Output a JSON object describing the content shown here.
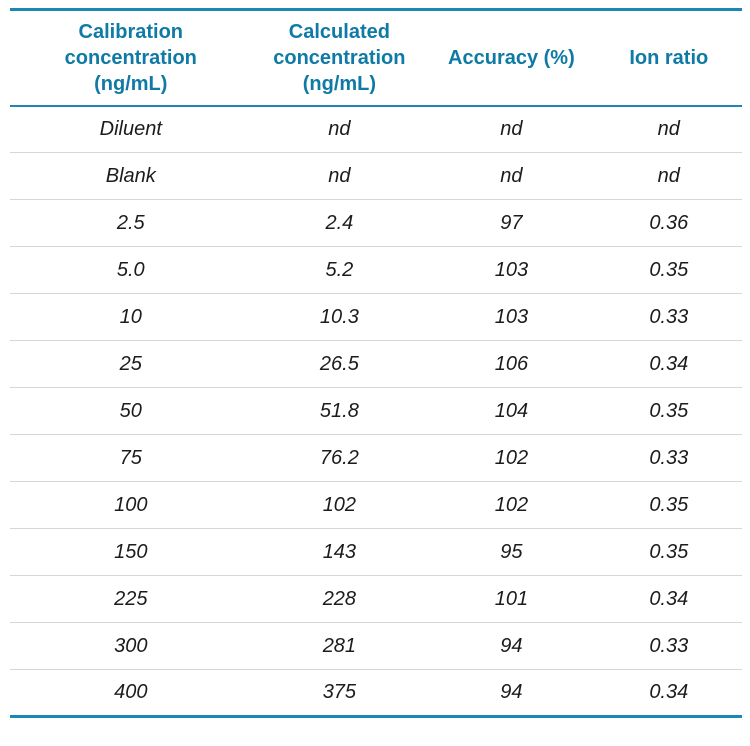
{
  "colors": {
    "accent": "#0f7aa6",
    "rule": "#1b87b4",
    "separator": "#d6d6d6",
    "body-text": "#1c1c1c"
  },
  "table": {
    "columns": [
      "Calibration\nconcentration\n(ng/mL)",
      "Calculated\nconcentration\n(ng/mL)",
      "Accuracy (%)",
      "Ion ratio"
    ],
    "rows": [
      [
        "Diluent",
        "nd",
        "nd",
        "nd"
      ],
      [
        "Blank",
        "nd",
        "nd",
        "nd"
      ],
      [
        "2.5",
        "2.4",
        "97",
        "0.36"
      ],
      [
        "5.0",
        "5.2",
        "103",
        "0.35"
      ],
      [
        "10",
        "10.3",
        "103",
        "0.33"
      ],
      [
        "25",
        "26.5",
        "106",
        "0.34"
      ],
      [
        "50",
        "51.8",
        "104",
        "0.35"
      ],
      [
        "75",
        "76.2",
        "102",
        "0.33"
      ],
      [
        "100",
        "102",
        "102",
        "0.35"
      ],
      [
        "150",
        "143",
        "95",
        "0.35"
      ],
      [
        "225",
        "228",
        "101",
        "0.34"
      ],
      [
        "300",
        "281",
        "94",
        "0.33"
      ],
      [
        "400",
        "375",
        "94",
        "0.34"
      ]
    ]
  }
}
